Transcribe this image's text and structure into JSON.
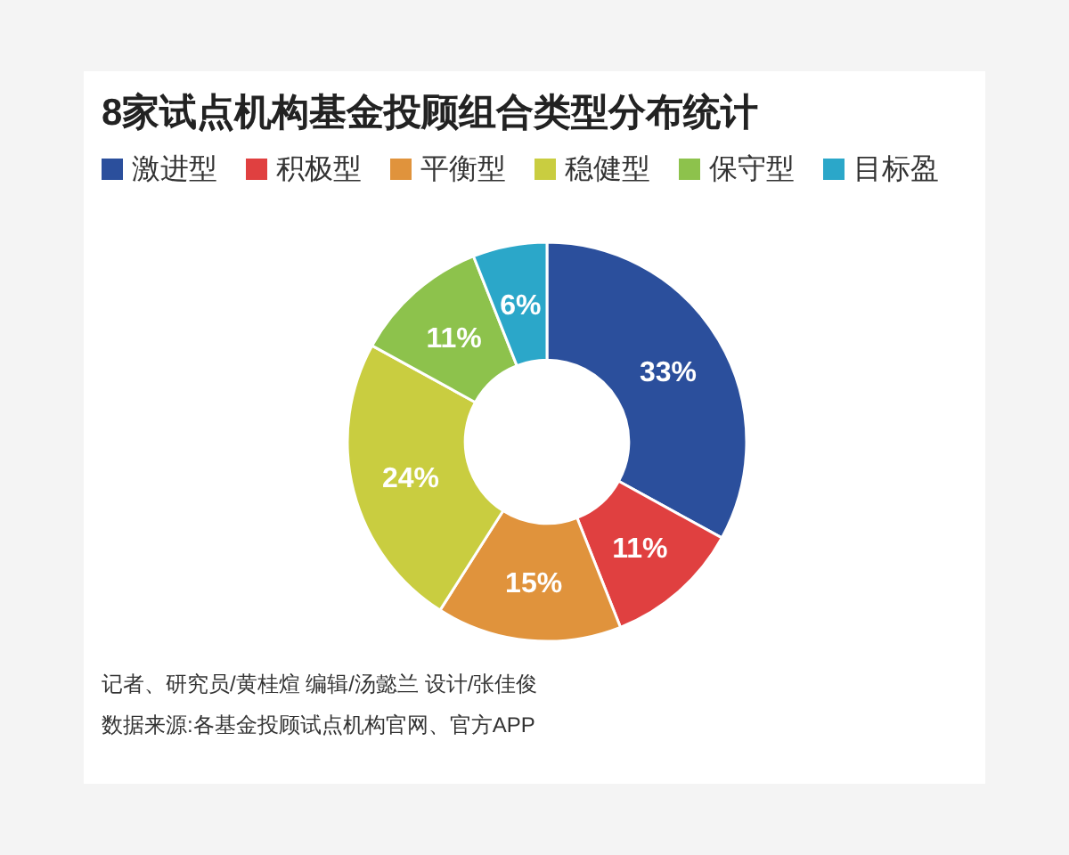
{
  "chart_data": {
    "type": "donut",
    "title": "8家试点机构基金投顾组合类型分布统计",
    "categories": [
      "激进型",
      "积极型",
      "平衡型",
      "稳健型",
      "保守型",
      "目标盈"
    ],
    "values": [
      33,
      11,
      15,
      24,
      11,
      6
    ],
    "value_labels": [
      "33%",
      "11%",
      "15%",
      "24%",
      "11%",
      "6%"
    ],
    "colors": [
      "#2b4f9c",
      "#e04040",
      "#e0933c",
      "#c9cd40",
      "#8dc24c",
      "#2ba7c9"
    ],
    "legend": "top",
    "annotations": [
      "记者、研究员/黄桂煊  编辑/汤懿兰  设计/张佳俊",
      "数据来源:各基金投顾试点机构官网、官方APP"
    ]
  }
}
